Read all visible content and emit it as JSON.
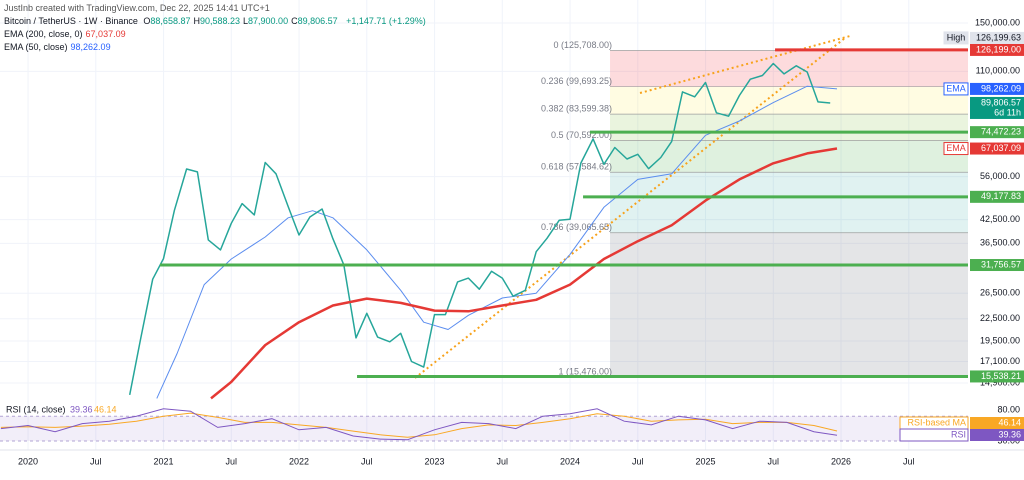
{
  "chart_data": {
    "type": "line",
    "log_scale": true,
    "credit": "JustInb created with TradingView.com, Dec 22, 2025 14:41 UTC+1",
    "title": "Bitcoin / TetherUS · 1W · Binance",
    "ohlc": [
      {
        "key": "O",
        "value": "88,658.87"
      },
      {
        "key": "H",
        "value": "90,588.23"
      },
      {
        "key": "L",
        "value": "87,900.00"
      },
      {
        "key": "C",
        "value": "89,806.57"
      }
    ],
    "change": "+1,147.71 (+1.29%)",
    "xlim": [
      2019.793,
      2026.937
    ],
    "xticks": [
      2020,
      {
        "value": 2020.5,
        "label": "Jul"
      },
      2021,
      {
        "value": 2021.5,
        "label": "Jul"
      },
      2022,
      {
        "value": 2022.5,
        "label": "Jul"
      },
      2023,
      {
        "value": 2023.5,
        "label": "Jul"
      },
      2024,
      {
        "value": 2024.5,
        "label": "Jul"
      },
      2025,
      {
        "value": 2025.5,
        "label": "Jul"
      },
      2026,
      {
        "value": 2026.5,
        "label": "Jul"
      }
    ],
    "ylim": [
      13360,
      152900
    ],
    "yticks": [
      {
        "value": 150000,
        "label": "150,000.00"
      },
      {
        "value": 110000,
        "label": "110,000.00"
      },
      {
        "value": 56000,
        "label": "56,000.00"
      },
      {
        "value": 42500,
        "label": "42,500.00"
      },
      {
        "value": 36500,
        "label": "36,500.00"
      },
      {
        "value": 26500,
        "label": "26,500.00"
      },
      {
        "value": 22500,
        "label": "22,500.00"
      },
      {
        "value": 19500,
        "label": "19,500.00"
      },
      {
        "value": 17100,
        "label": "17,100.00"
      },
      {
        "value": 14900,
        "label": "14,900.00"
      }
    ],
    "grid": true,
    "price": {
      "color": "#26a69a",
      "x": [
        2020.75,
        2020.83,
        2020.92,
        2021.0,
        2021.08,
        2021.17,
        2021.25,
        2021.33,
        2021.42,
        2021.5,
        2021.58,
        2021.67,
        2021.75,
        2021.83,
        2021.92,
        2022.0,
        2022.08,
        2022.17,
        2022.25,
        2022.33,
        2022.42,
        2022.5,
        2022.58,
        2022.67,
        2022.75,
        2022.83,
        2022.92,
        2023.0,
        2023.08,
        2023.17,
        2023.25,
        2023.33,
        2023.42,
        2023.5,
        2023.58,
        2023.67,
        2023.75,
        2023.83,
        2023.92,
        2024.0,
        2024.08,
        2024.17,
        2024.25,
        2024.33,
        2024.42,
        2024.5,
        2024.58,
        2024.67,
        2024.75,
        2024.83,
        2024.92,
        2025.0,
        2025.08,
        2025.17,
        2025.25,
        2025.33,
        2025.42,
        2025.5,
        2025.58,
        2025.67,
        2025.75,
        2025.83,
        2025.92
      ],
      "values": [
        13800,
        19700,
        29000,
        33100,
        45100,
        58800,
        57700,
        37300,
        35000,
        41500,
        47100,
        43800,
        61300,
        57000,
        46200,
        38500,
        43200,
        45500,
        37600,
        31800,
        19900,
        23300,
        20000,
        19400,
        20500,
        17100,
        16500,
        23100,
        23100,
        28500,
        29200,
        27200,
        30500,
        29200,
        26000,
        27000,
        34600,
        37700,
        42300,
        42600,
        61100,
        71300,
        60600,
        67500,
        62700,
        64600,
        58900,
        63300,
        70200,
        96400,
        93400,
        102400,
        84300,
        82500,
        94200,
        104600,
        107100,
        115700,
        108200,
        114000,
        109500,
        90400,
        89806.57
      ]
    },
    "series": [
      {
        "name": "EMA (200, close, 0)",
        "color": "#e53935",
        "value_label": "67,037.09",
        "x": [
          2021.35,
          2021.5,
          2021.75,
          2022.0,
          2022.25,
          2022.5,
          2022.75,
          2023.0,
          2023.25,
          2023.5,
          2023.75,
          2024.0,
          2024.25,
          2024.5,
          2024.75,
          2025.0,
          2025.25,
          2025.5,
          2025.75,
          2025.97
        ],
        "values": [
          13500,
          15000,
          19000,
          22000,
          24500,
          25600,
          24900,
          23700,
          23600,
          24500,
          25400,
          28000,
          33000,
          37000,
          41000,
          48000,
          55000,
          61000,
          65000,
          67037.09
        ]
      },
      {
        "name": "EMA (50, close)",
        "color": "#5b8def",
        "value_label": "98,262.09",
        "x": [
          2020.95,
          2021.1,
          2021.3,
          2021.5,
          2021.75,
          2021.92,
          2022.1,
          2022.25,
          2022.5,
          2022.75,
          2022.92,
          2023.1,
          2023.25,
          2023.5,
          2023.75,
          2024.0,
          2024.25,
          2024.5,
          2024.75,
          2025.0,
          2025.25,
          2025.5,
          2025.75,
          2025.97
        ],
        "values": [
          13500,
          18000,
          28000,
          33000,
          38000,
          43000,
          45000,
          43000,
          35000,
          27000,
          22000,
          21000,
          23000,
          25700,
          26500,
          34000,
          46000,
          55000,
          57000,
          73000,
          80000,
          90000,
          100000,
          98262.09
        ]
      }
    ],
    "fib": {
      "from": 2024.295,
      "colors": [
        "rgba(242,54,69,0.18)",
        "rgba(255,235,59,0.15)",
        "rgba(139,195,74,0.18)",
        "rgba(76,175,80,0.18)",
        "rgba(0,150,136,0.12)",
        "rgba(120,123,134,0.2)"
      ],
      "levels": [
        {
          "value": 125708,
          "label": "0 (125,708.00)"
        },
        {
          "value": 99693.25,
          "label": "0.236 (99,693.25)"
        },
        {
          "value": 83599.38,
          "label": "0.382 (83,599.38)"
        },
        {
          "value": 70592,
          "label": "0.5 (70,592.00)"
        },
        {
          "value": 57584.62,
          "label": "0.618 (57,584.62)"
        },
        {
          "value": 39065.65,
          "label": "0.786 (39,065.65)"
        },
        {
          "value": 15476,
          "label": "1 (15,476.00)"
        }
      ]
    },
    "levels": [
      {
        "value": 126199,
        "label": "126,199.00",
        "color": "#e53935",
        "from": 2025.513
      },
      {
        "value": 74472.23,
        "label": "74,472.23",
        "color": "#4caf50",
        "from": 2024.147
      },
      {
        "value": 49177.83,
        "label": "49,177.83",
        "color": "#4caf50",
        "from": 2024.096
      },
      {
        "value": 31756.57,
        "label": "31,756.57",
        "color": "#4caf50",
        "from": 2020.974
      },
      {
        "value": 15538.21,
        "label": "15,538.21",
        "color": "#4caf50",
        "from": 2022.428
      }
    ],
    "tags": [
      {
        "value": 126199.63,
        "label": "126,199.63",
        "tag": "High",
        "color": "#e0e3eb",
        "text_color": "#131722"
      },
      {
        "value": 98262.09,
        "label": "98,262.09",
        "tag": "EMA",
        "color": "#2962ff",
        "text_color": "#ffffff"
      },
      {
        "value": 89806.57,
        "label": "89,806.57",
        "sub": "6d 11h",
        "color": "#089981",
        "text_color": "#ffffff"
      },
      {
        "value": 67037.09,
        "label": "67,037.09",
        "tag": "EMA",
        "color": "#e53935",
        "text_color": "#ffffff"
      }
    ],
    "rsi": {
      "title": "RSI (14, close)",
      "readout": [
        "39.36",
        "46.14"
      ],
      "ylim": [
        18.7,
        91.3
      ],
      "band": [
        30,
        70
      ],
      "yticks": [
        {
          "value": 80,
          "label": "80.00"
        },
        {
          "value": 30,
          "label": "30.00"
        }
      ],
      "x": [
        2019.8,
        2020.0,
        2020.2,
        2020.4,
        2020.6,
        2020.8,
        2021.0,
        2021.2,
        2021.4,
        2021.6,
        2021.8,
        2022.0,
        2022.2,
        2022.4,
        2022.6,
        2022.8,
        2023.0,
        2023.2,
        2023.4,
        2023.6,
        2023.8,
        2024.0,
        2024.2,
        2024.4,
        2024.6,
        2024.8,
        2025.0,
        2025.2,
        2025.4,
        2025.6,
        2025.8,
        2025.97
      ],
      "values": [
        50,
        55,
        45,
        58,
        62,
        70,
        82,
        78,
        52,
        58,
        66,
        48,
        52,
        38,
        33,
        32,
        48,
        60,
        58,
        50,
        70,
        74,
        82,
        62,
        56,
        70,
        64,
        50,
        62,
        60,
        45,
        39.36
      ],
      "ma": [
        52,
        53,
        52,
        54,
        57,
        62,
        70,
        75,
        68,
        60,
        60,
        56,
        52,
        46,
        40,
        36,
        40,
        50,
        56,
        55,
        60,
        66,
        74,
        70,
        62,
        64,
        65,
        58,
        60,
        60,
        55,
        46.14
      ],
      "color": "#7e57c2",
      "ma_color": "#f9a825",
      "tags": [
        {
          "name": "RSI-based MA",
          "value": 46.14,
          "label": "46.14",
          "color": "#f9a825"
        },
        {
          "name": "RSI",
          "value": 39.36,
          "label": "39.36",
          "color": "#7e57c2"
        }
      ]
    }
  }
}
